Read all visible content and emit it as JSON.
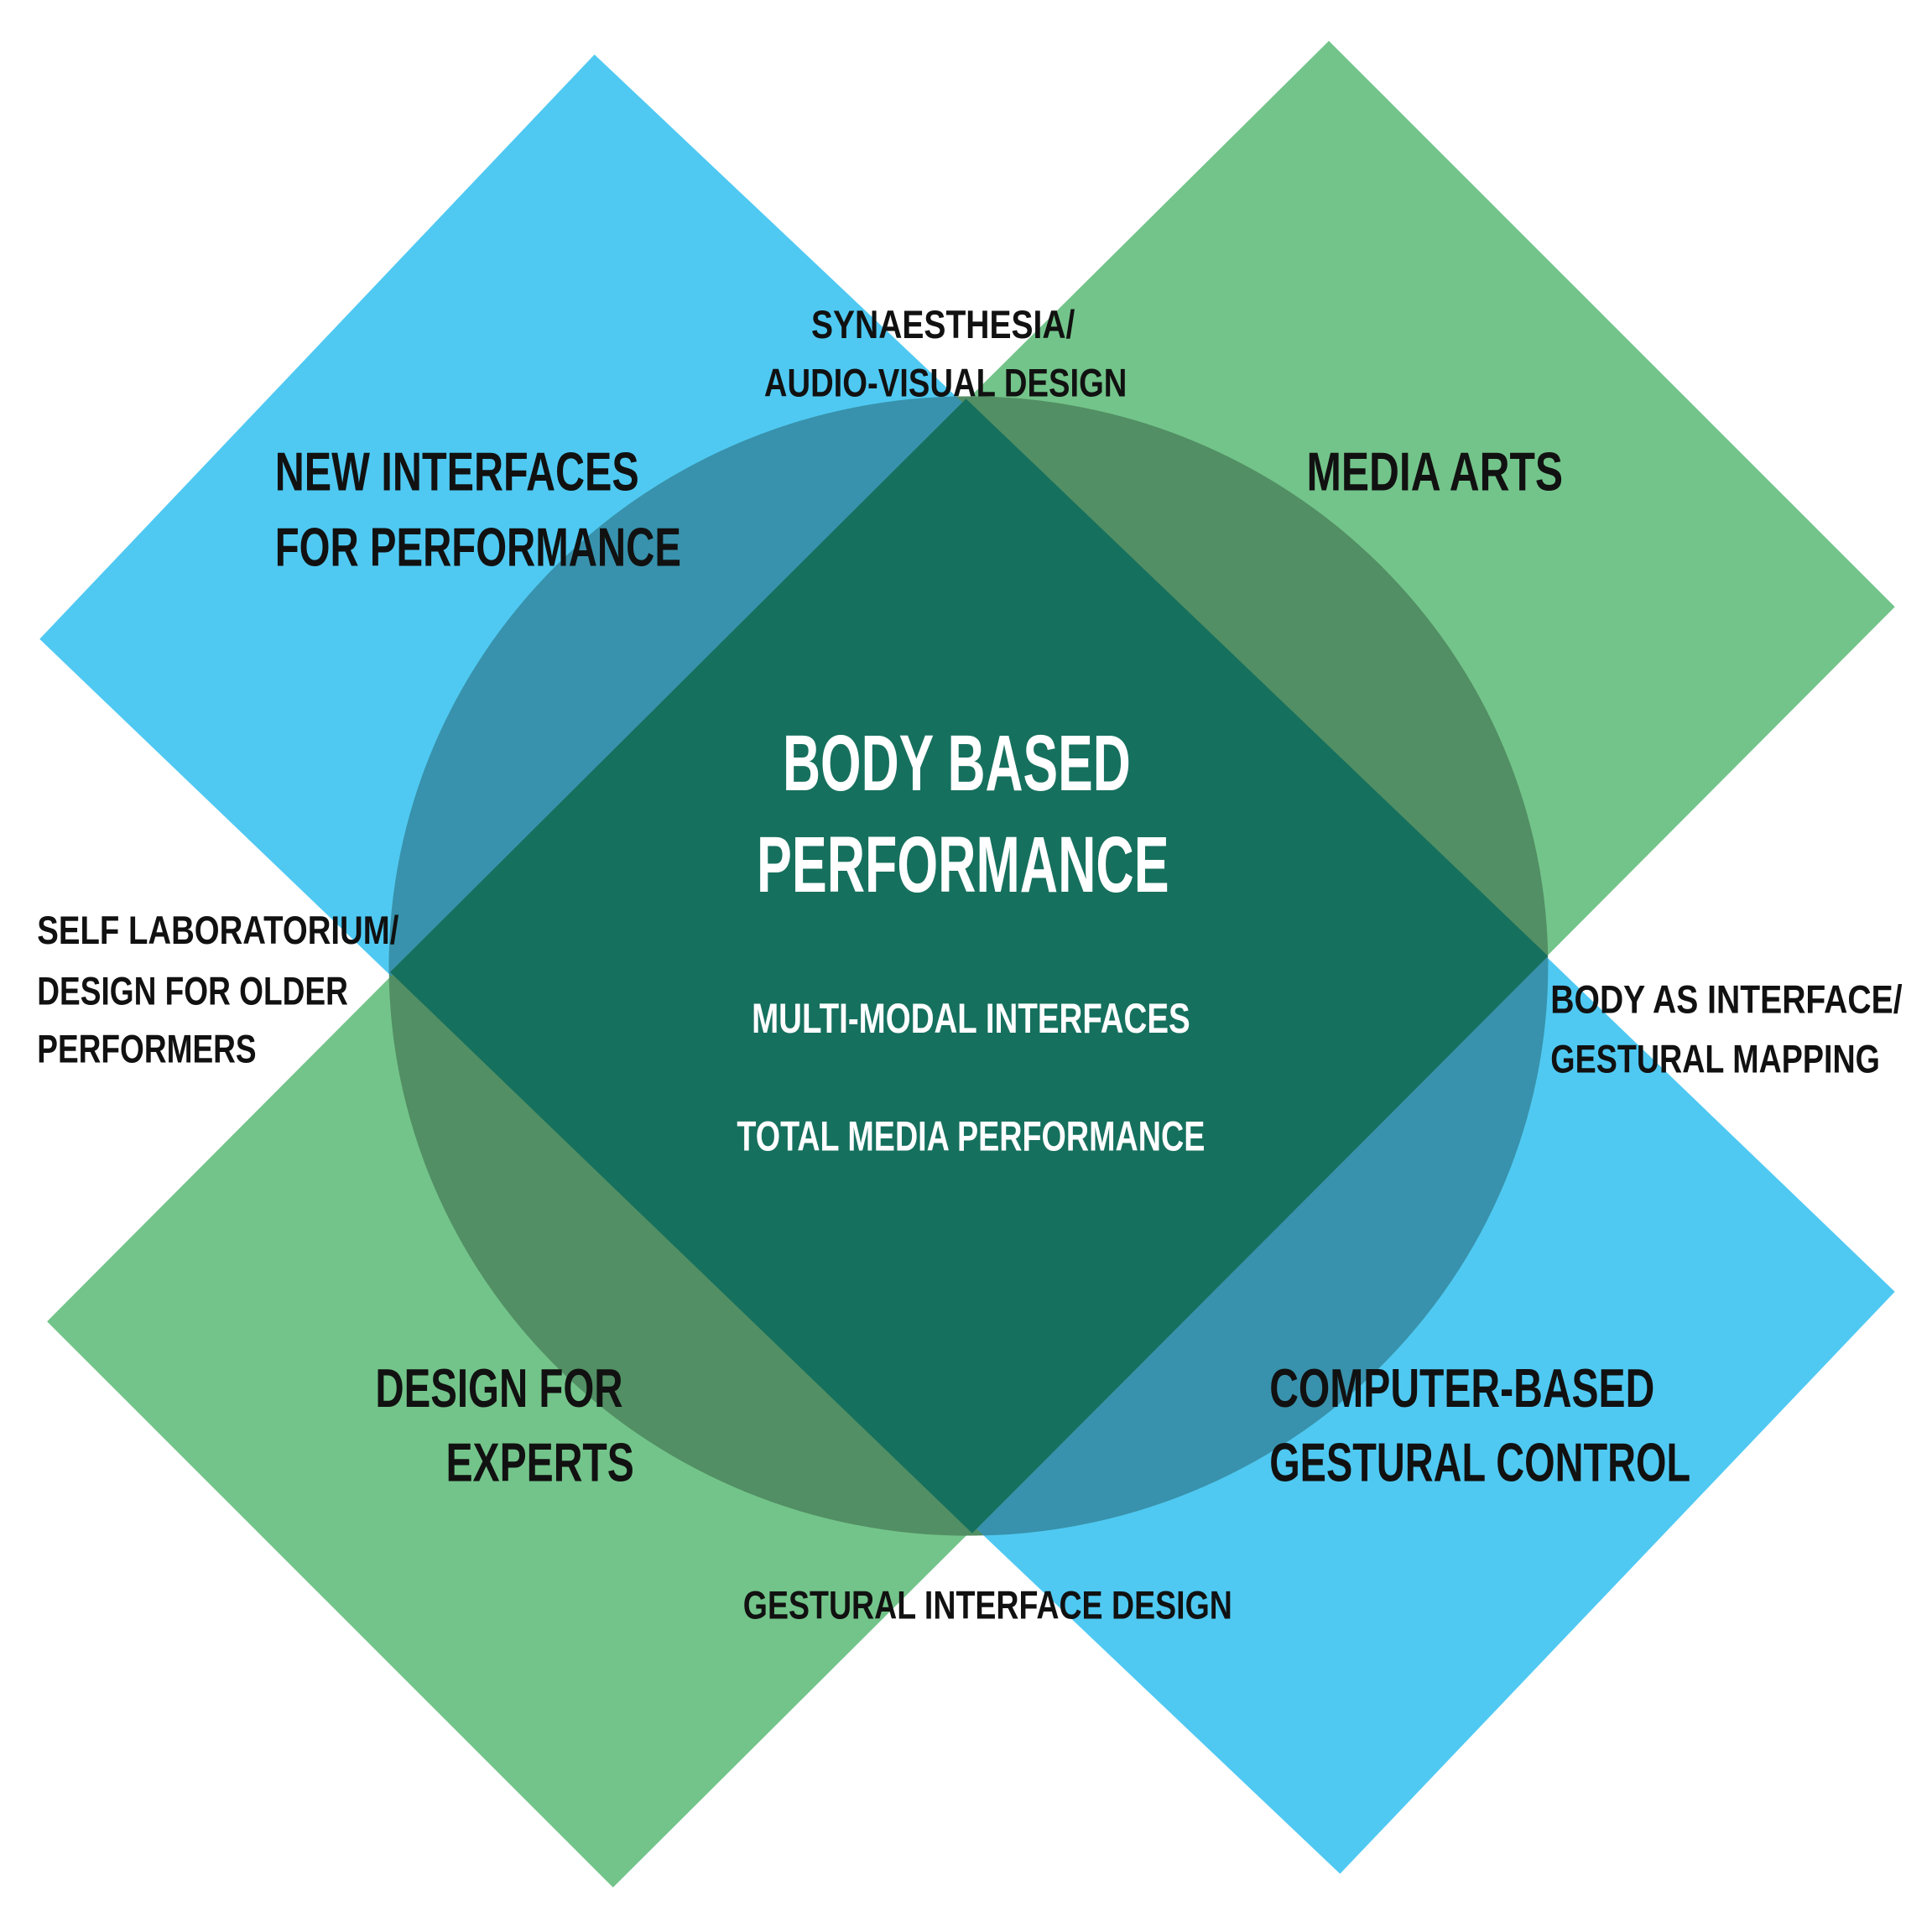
{
  "colors": {
    "blue": "#4FC9F2",
    "green": "#73C48A",
    "blue_in_circle": "#3892AD",
    "green_in_circle": "#528F64",
    "center": "#16705E",
    "text_dark": "#111111",
    "text_light": "#ffffff"
  },
  "center": {
    "title_line1": "BODY BASED",
    "title_line2": "PERFORMANCE",
    "item1": "MULTI-MODAL INTERFACES",
    "item2": "TOTAL MEDIA PERFORMANCE"
  },
  "quadrants": {
    "top_left": {
      "line1": "NEW INTERFACES",
      "line2": "FOR PERFORMANCE"
    },
    "top_right": {
      "line1": "MEDIA ARTS"
    },
    "bottom_left": {
      "line1": "DESIGN FOR",
      "line2": "EXPERTS"
    },
    "bottom_right": {
      "line1": "COMPUTER-BASED",
      "line2": "GESTURAL CONTROL"
    }
  },
  "intersections": {
    "top": {
      "line1": "SYNAESTHESIA/",
      "line2": "AUDIO-VISUAL DESIGN"
    },
    "left": {
      "line1": "SELF LABORATORIUM/",
      "line2": "DESIGN FOR OLDER",
      "line3": "PERFORMERS"
    },
    "right": {
      "line1": "BODY AS INTERFACE/",
      "line2": "GESTURAL MAPPING"
    },
    "bottom": {
      "line1": "GESTURAL INTERFACE DESIGN"
    }
  }
}
